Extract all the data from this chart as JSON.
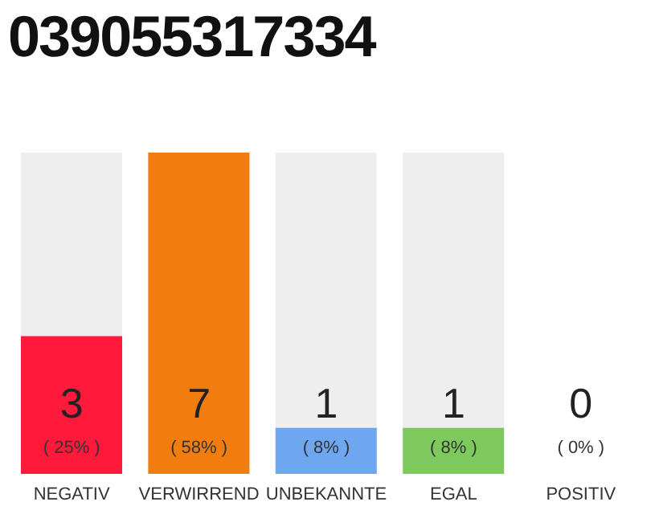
{
  "chart_data": {
    "type": "bar",
    "title": "039055317334",
    "categories": [
      "NEGATIV",
      "VERWIRREND",
      "UNBEKANNTE",
      "EGAL",
      "POSITIV"
    ],
    "values": [
      3,
      7,
      1,
      1,
      0
    ],
    "colors": [
      "#ff1a3c",
      "#f07d0e",
      "#6ea6f0",
      "#7dc95e",
      "#cccccc"
    ],
    "data_labels": true,
    "annotations": [
      "( 25% )",
      "( 58% )",
      "( 8% )",
      "( 8% )",
      "( 0% )"
    ]
  }
}
